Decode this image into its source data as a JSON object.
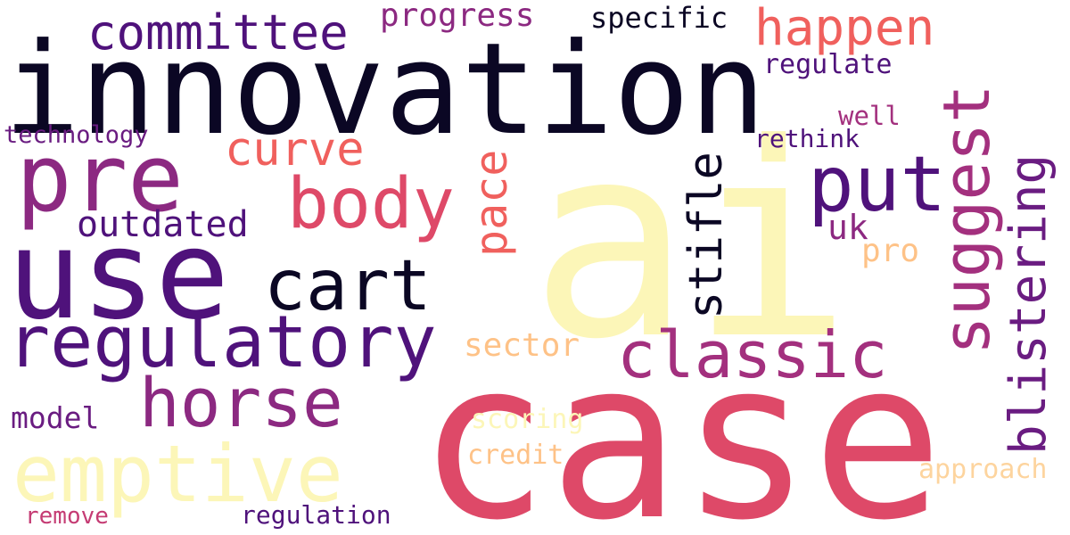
{
  "palette": {
    "darkest": "#0b0724",
    "deep_purple": "#4f127b",
    "purple": "#6a1c81",
    "plum": "#8c2981",
    "magenta": "#a3307e",
    "rose": "#c53c74",
    "red_pink": "#de4968",
    "coral": "#f0605d",
    "peach": "#fec287",
    "light_peach": "#fdd49e",
    "pale_yellow": "#fcf6b8"
  },
  "words": {
    "ai": "ai",
    "case": "case",
    "innovation": "innovation",
    "use": "use",
    "pre": "pre",
    "regulatory": "regulatory",
    "emptive": "emptive",
    "classic": "classic",
    "horse": "horse",
    "cart": "cart",
    "body": "body",
    "put": "put",
    "suggest": "suggest",
    "committee": "committee",
    "happen": "happen",
    "blistering": "blistering",
    "stifle": "stifle",
    "curve": "curve",
    "pace": "pace",
    "outdated": "outdated",
    "progress": "progress",
    "specific": "specific",
    "regulate": "regulate",
    "well": "well",
    "rethink": "rethink",
    "technology": "technology",
    "uk": "uk",
    "pro": "pro",
    "sector": "sector",
    "model": "model",
    "scoring": "scoring",
    "credit": "credit",
    "approach": "approach",
    "remove": "remove",
    "regulation": "regulation"
  }
}
